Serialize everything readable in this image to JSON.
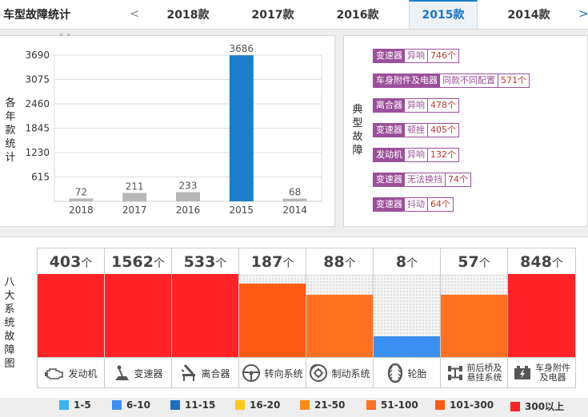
{
  "header": {
    "title": "车型故障统计",
    "prev": "<",
    "next": ">",
    "tabs": [
      "2018款",
      "2017款",
      "2016款",
      "2015款",
      "2014款"
    ],
    "active_tab": "2015款"
  },
  "left_panel": {
    "ylabel": "各年款统计",
    "cut_label": "* *"
  },
  "chart_data": {
    "type": "bar",
    "categories": [
      "2018",
      "2017",
      "2016",
      "2015",
      "2014"
    ],
    "values": [
      72,
      211,
      233,
      3686,
      68
    ],
    "ylabel": "各年款统计",
    "yticks": [
      615,
      1230,
      1845,
      2460,
      3075,
      3690
    ],
    "ylim": [
      0,
      3690
    ],
    "highlight_category": "2015",
    "colors": {
      "normal": "#b7b7b7",
      "highlight": "#1a7fc7"
    },
    "grid": true
  },
  "faults": {
    "label": "典型故障",
    "items": [
      {
        "system": "变速器",
        "issue": "异响",
        "count": "746个"
      },
      {
        "system": "车身附件及电器",
        "issue": "同款不同配置",
        "count": "571个"
      },
      {
        "system": "离合器",
        "issue": "异响",
        "count": "478个"
      },
      {
        "system": "变速器",
        "issue": "顿挫",
        "count": "405个"
      },
      {
        "system": "发动机",
        "issue": "异响",
        "count": "132个"
      },
      {
        "system": "变速器",
        "issue": "无法换挡",
        "count": "74个"
      },
      {
        "system": "变速器",
        "issue": "抖动",
        "count": "64个"
      }
    ]
  },
  "systems": {
    "label": "八大系统故障图",
    "unit": "个",
    "items": [
      {
        "value": "403",
        "name": "发动机",
        "level": 1.0,
        "color": "#ff2226",
        "icon": "engine-icon"
      },
      {
        "value": "1562",
        "name": "变速器",
        "level": 1.0,
        "color": "#ff2226",
        "icon": "gear-shift-icon"
      },
      {
        "value": "533",
        "name": "离合器",
        "level": 1.0,
        "color": "#ff2226",
        "icon": "clutch-icon"
      },
      {
        "value": "187",
        "name": "转向系统",
        "level": 0.88,
        "color": "#ff5a14",
        "icon": "steering-wheel-icon"
      },
      {
        "value": "88",
        "name": "制动系统",
        "level": 0.75,
        "color": "#ff7121",
        "icon": "brake-disc-icon"
      },
      {
        "value": "8",
        "name": "轮胎",
        "level": 0.25,
        "color": "#3b8ff0",
        "icon": "tire-icon"
      },
      {
        "value": "57",
        "name": "前后桥及悬挂系统",
        "name_lines": [
          "前后桥及",
          "悬挂系统"
        ],
        "level": 0.75,
        "color": "#ff7121",
        "icon": "suspension-icon"
      },
      {
        "value": "848",
        "name": "车身附件及电器",
        "name_lines": [
          "车身附件",
          "及电器"
        ],
        "level": 1.0,
        "color": "#ff2226",
        "icon": "battery-icon"
      }
    ]
  },
  "legend": [
    {
      "label": "1-5",
      "color": "#39b5f5"
    },
    {
      "label": "6-10",
      "color": "#3b8ff0"
    },
    {
      "label": "11-15",
      "color": "#1a70c4"
    },
    {
      "label": "16-20",
      "color": "#ffc51a"
    },
    {
      "label": "21-50",
      "color": "#ff8a1a"
    },
    {
      "label": "51-100",
      "color": "#ff7121"
    },
    {
      "label": "101-300",
      "color": "#ff5a14"
    },
    {
      "label": "300以上",
      "color": "#ff2226"
    }
  ]
}
